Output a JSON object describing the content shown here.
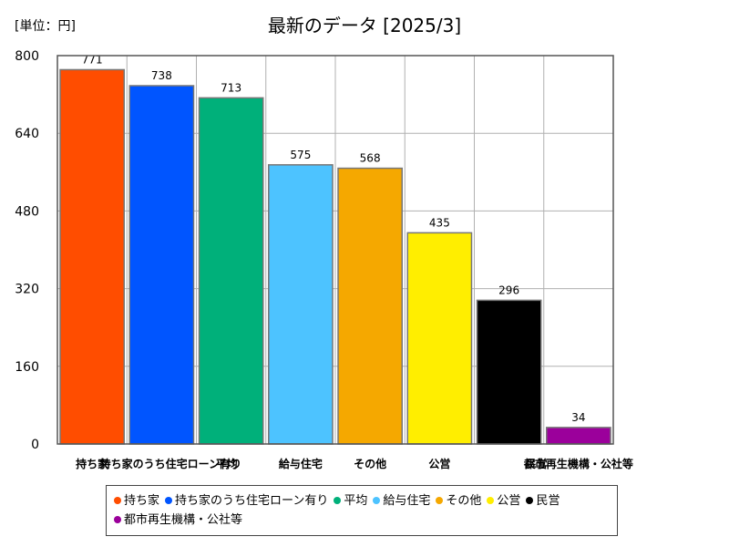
{
  "header": {
    "unit_label": "[単位：円]",
    "title": "最新のデータ [2025/3]"
  },
  "chart_data": {
    "type": "bar",
    "ylim": [
      0,
      800
    ],
    "yticks": [
      0,
      160,
      320,
      480,
      640,
      800
    ],
    "grid": true,
    "legend_position": "bottom",
    "categories": [
      "持ち家",
      "持ち家のうち住宅ローン有り",
      "平均",
      "給与住宅",
      "その他",
      "公営",
      "民営",
      "都市再生機構・公社等"
    ],
    "xtick_labels": [
      "持ち家",
      "持ち家のうち住宅ローン有り",
      "平均",
      "給与住宅",
      "その他",
      "公営",
      "民営",
      "都市再生機構・公社等"
    ],
    "values": [
      771,
      738,
      713,
      575,
      568,
      435,
      296,
      34
    ],
    "colors": [
      "#ff4d00",
      "#0055ff",
      "#00b07a",
      "#4dc3ff",
      "#f5a800",
      "#ffee00",
      "#000000",
      "#9b009b"
    ]
  },
  "legend": {
    "items": [
      {
        "label": "持ち家",
        "color": "#ff4d00"
      },
      {
        "label": "持ち家のうち住宅ローン有り",
        "color": "#0055ff"
      },
      {
        "label": "平均",
        "color": "#00b07a"
      },
      {
        "label": "給与住宅",
        "color": "#4dc3ff"
      },
      {
        "label": "その他",
        "color": "#f5a800"
      },
      {
        "label": "公営",
        "color": "#ffee00"
      },
      {
        "label": "民営",
        "color": "#000000"
      },
      {
        "label": "都市再生機構・公社等",
        "color": "#9b009b"
      }
    ]
  }
}
